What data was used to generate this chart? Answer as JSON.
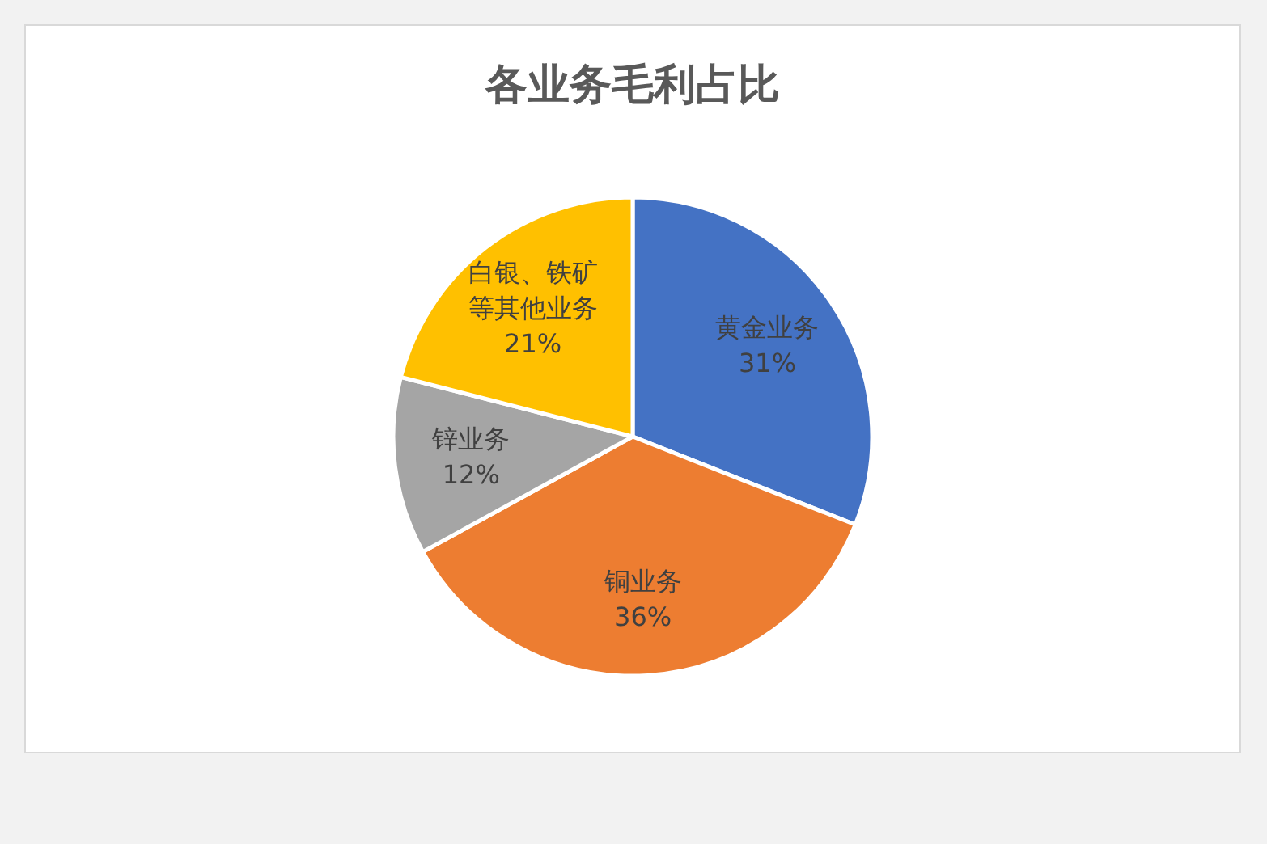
{
  "chart_data": {
    "type": "pie",
    "title": "各业务毛利占比",
    "categories": [
      "黄金业务",
      "铜业务",
      "锌业务",
      "白银、铁矿等其他业务"
    ],
    "values": [
      31,
      36,
      12,
      21
    ],
    "colors": [
      "#4472c4",
      "#ed7d31",
      "#a5a5a5",
      "#ffc000"
    ],
    "value_labels": [
      "31%",
      "36%",
      "12%",
      "21%"
    ],
    "legend": false
  }
}
